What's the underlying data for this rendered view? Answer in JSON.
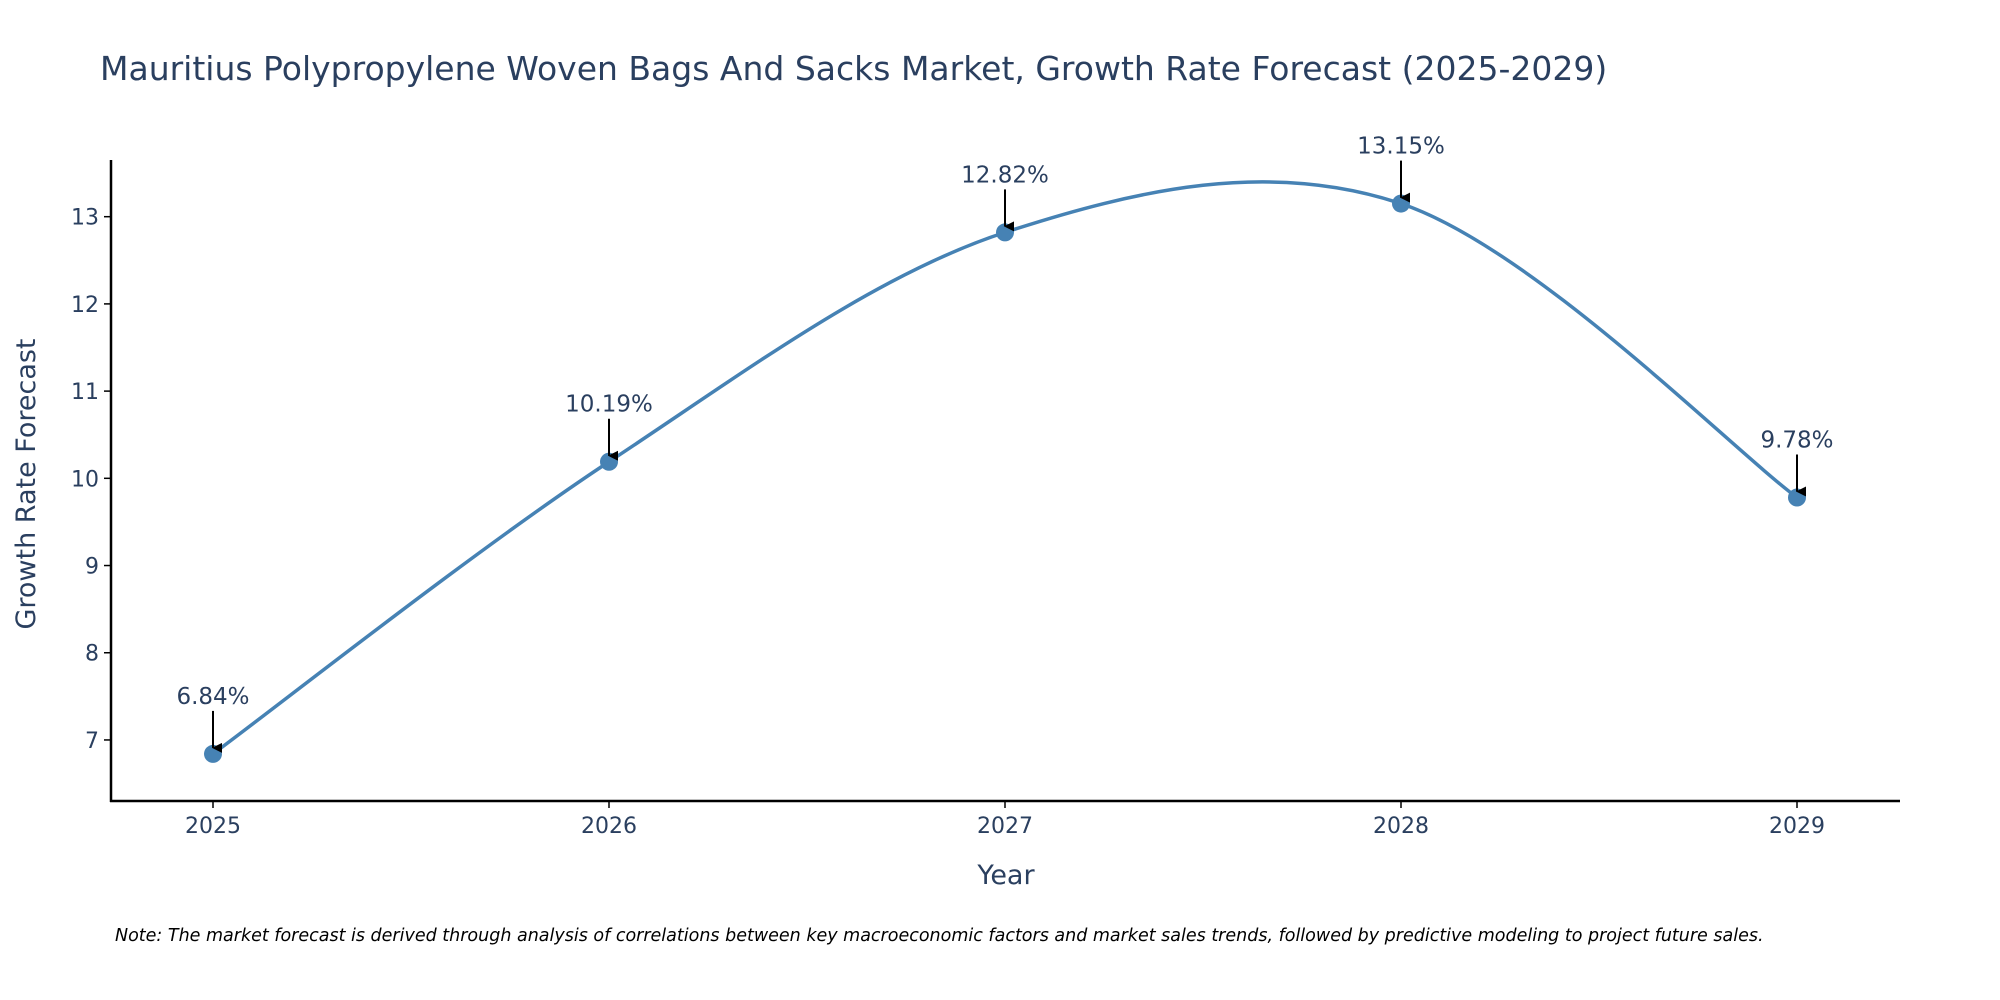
{
  "chart_data": {
    "type": "line",
    "title": "Mauritius Polypropylene Woven Bags And Sacks Market, Growth Rate Forecast (2025-2029)",
    "xlabel": "Year",
    "ylabel": "Growth Rate Forecast",
    "categories": [
      "2025",
      "2026",
      "2027",
      "2028",
      "2029"
    ],
    "values": [
      6.84,
      10.19,
      12.82,
      13.15,
      9.78
    ],
    "data_labels": [
      "6.84%",
      "10.19%",
      "12.82%",
      "13.15%",
      "9.78%"
    ],
    "y_ticks": [
      7,
      8,
      9,
      10,
      11,
      12,
      13
    ],
    "y_tick_labels": [
      "7",
      "8",
      "9",
      "10",
      "11",
      "12",
      "13"
    ],
    "ylim": [
      6.3,
      13.65
    ],
    "grid": false,
    "line_shape": "spline",
    "note": "Note: The market forecast is derived through analysis of correlations between key macroeconomic factors and market sales trends, followed by predictive modeling to project future sales."
  },
  "colors": {
    "line": "#4682b4",
    "marker": "#4682b4",
    "axis": "#000000",
    "text": "#2a3f5f",
    "arrow": "#000000",
    "background": "#ffffff"
  }
}
